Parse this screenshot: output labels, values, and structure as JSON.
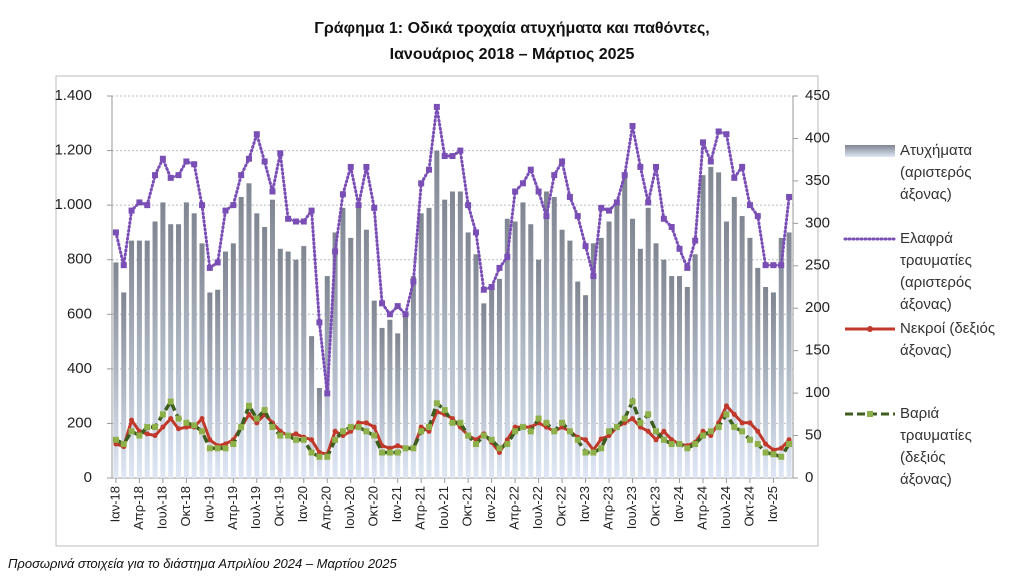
{
  "chart_data": {
    "type": "combo",
    "title": [
      "Γράφημα 1: Οδικά τροχαία ατυχήματα και παθόντες,",
      "Ιανουάριος 2018 – Μάρτιος 2025"
    ],
    "note": "Προσωρινά στοιχεία για το διάστημα Απριλίου 2024 – Μαρτίου 2025",
    "categories": [
      "Ιαν-18",
      null,
      null,
      "Απρ-18",
      null,
      null,
      "Ιουλ-18",
      null,
      null,
      "Οκτ-18",
      null,
      null,
      "Ιαν-19",
      null,
      null,
      "Απρ-19",
      null,
      null,
      "Ιουλ-19",
      null,
      null,
      "Οκτ-19",
      null,
      null,
      "Ιαν-20",
      null,
      null,
      "Απρ-20",
      null,
      null,
      "Ιουλ-20",
      null,
      null,
      "Οκτ-20",
      null,
      null,
      "Ιαν-21",
      null,
      null,
      "Απρ-21",
      null,
      null,
      "Ιουλ-21",
      null,
      null,
      "Οκτ-21",
      null,
      null,
      "Ιαν-22",
      null,
      null,
      "Απρ-22",
      null,
      null,
      "Ιουλ-22",
      null,
      null,
      "Οκτ-22",
      null,
      null,
      "Ιαν-23",
      null,
      null,
      "Απρ-23",
      null,
      null,
      "Ιουλ-23",
      null,
      null,
      "Οκτ-23",
      null,
      null,
      "Ιαν-24",
      null,
      null,
      "Απρ-24",
      null,
      null,
      "Ιουλ-24",
      null,
      null,
      "Οκτ-24",
      null,
      null,
      "Ιαν-25",
      null,
      null
    ],
    "series": [
      {
        "name": "Ατυχήματα (αριστερός άξονας)",
        "kind": "bar",
        "color": "#7f8591",
        "values": [
          790,
          680,
          870,
          870,
          870,
          940,
          1010,
          930,
          930,
          1010,
          970,
          860,
          680,
          690,
          830,
          860,
          1030,
          1080,
          970,
          920,
          1020,
          840,
          830,
          800,
          850,
          520,
          330,
          740,
          900,
          990,
          880,
          1000,
          910,
          650,
          550,
          580,
          530,
          600,
          740,
          970,
          990,
          1200,
          1020,
          1050,
          1050,
          900,
          820,
          640,
          700,
          730,
          950,
          940,
          1010,
          930,
          800,
          1050,
          1030,
          910,
          870,
          720,
          670,
          860,
          880,
          940,
          1000,
          1100,
          950,
          840,
          990,
          860,
          800,
          740,
          740,
          700,
          820,
          1110,
          1140,
          1120,
          940,
          1030,
          960,
          880,
          770,
          700,
          680,
          880,
          900
        ]
      },
      {
        "name": "Ελαφρά τραυματίες (αριστερός άξονας)",
        "kind": "dotted",
        "color": "#7a4fb5",
        "values": [
          900,
          780,
          980,
          1010,
          1000,
          1110,
          1170,
          1100,
          1110,
          1160,
          1150,
          1000,
          770,
          790,
          980,
          1000,
          1110,
          1170,
          1260,
          1160,
          1050,
          1190,
          950,
          940,
          940,
          980,
          570,
          310,
          830,
          1040,
          1140,
          1000,
          1140,
          990,
          640,
          600,
          630,
          600,
          720,
          1080,
          1130,
          1360,
          1180,
          1180,
          1200,
          1000,
          900,
          690,
          700,
          770,
          810,
          1050,
          1080,
          1130,
          1050,
          960,
          1110,
          1160,
          1030,
          960,
          850,
          740,
          990,
          980,
          1010,
          1110,
          1290,
          1140,
          1010,
          1140,
          950,
          920,
          840,
          770,
          870,
          1230,
          1160,
          1270,
          1260,
          1100,
          1140,
          1000,
          960,
          780,
          780,
          780,
          1030
        ]
      },
      {
        "name": "Νεκροί (δεξιός άξονας)",
        "kind": "line",
        "axis": "y2",
        "color": "#c0392b",
        "values": [
          40,
          37,
          68,
          55,
          52,
          50,
          60,
          70,
          58,
          60,
          60,
          70,
          45,
          38,
          40,
          45,
          60,
          75,
          65,
          75,
          65,
          55,
          50,
          52,
          48,
          45,
          30,
          28,
          55,
          50,
          55,
          65,
          65,
          60,
          38,
          35,
          38,
          35,
          35,
          60,
          55,
          78,
          75,
          70,
          60,
          50,
          45,
          52,
          42,
          30,
          45,
          60,
          60,
          60,
          65,
          60,
          55,
          60,
          55,
          48,
          45,
          33,
          46,
          50,
          60,
          65,
          70,
          60,
          55,
          45,
          55,
          45,
          40,
          38,
          42,
          55,
          50,
          65,
          85,
          75,
          65,
          65,
          55,
          40,
          33,
          35,
          45
        ]
      },
      {
        "name": "Βαριά τραυματίες (δεξιός άξονας)",
        "kind": "dashed",
        "axis": "y2",
        "color": "#3d5e1f",
        "values": [
          45,
          40,
          55,
          50,
          60,
          60,
          75,
          90,
          70,
          65,
          62,
          55,
          35,
          35,
          35,
          40,
          60,
          85,
          70,
          80,
          60,
          50,
          50,
          45,
          45,
          30,
          25,
          25,
          45,
          55,
          60,
          60,
          55,
          50,
          30,
          30,
          30,
          35,
          35,
          55,
          60,
          88,
          80,
          65,
          65,
          50,
          40,
          50,
          45,
          35,
          40,
          55,
          60,
          55,
          70,
          65,
          55,
          65,
          55,
          45,
          30,
          30,
          35,
          55,
          60,
          70,
          90,
          65,
          75,
          55,
          45,
          40,
          40,
          35,
          40,
          50,
          55,
          60,
          75,
          60,
          55,
          45,
          40,
          30,
          28,
          25,
          40
        ]
      }
    ],
    "ylim": [
      0,
      1400
    ],
    "yticks": [
      0,
      200,
      400,
      600,
      800,
      {
        "value": 1000,
        "label": "1.000"
      },
      {
        "value": 1200,
        "label": "1.200"
      },
      {
        "value": 1400,
        "label": "1.400"
      }
    ],
    "y2lim": [
      0,
      450
    ],
    "y2ticks": [
      0,
      50,
      100,
      150,
      200,
      250,
      300,
      350,
      400,
      450
    ],
    "grid": true
  }
}
